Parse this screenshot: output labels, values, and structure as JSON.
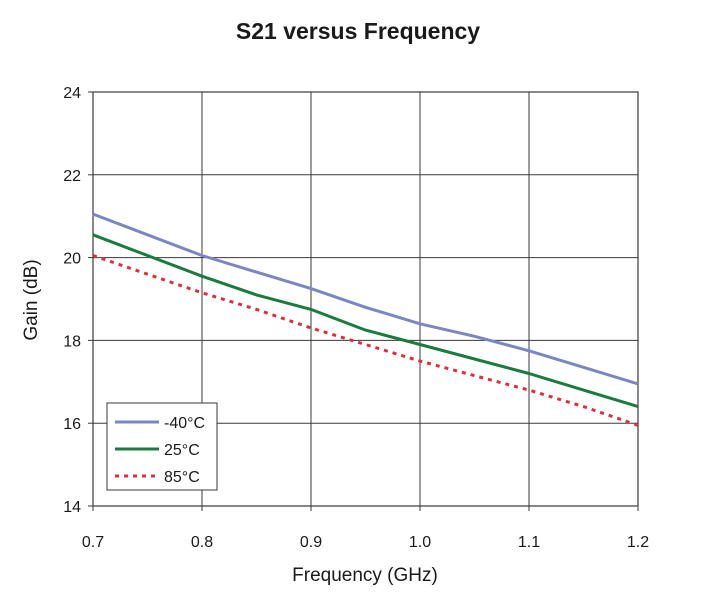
{
  "chart_data": {
    "type": "line",
    "title": "S21 versus Frequency",
    "xlabel": "Frequency (GHz)",
    "ylabel": "Gain (dB)",
    "xlim": [
      0.7,
      1.2
    ],
    "ylim": [
      14,
      24
    ],
    "xticks": [
      "0.7",
      "0.8",
      "0.9",
      "1.0",
      "1.1",
      "1.2"
    ],
    "yticks": [
      "14",
      "16",
      "18",
      "20",
      "22",
      "24"
    ],
    "grid": true,
    "legend_position": "bottom-left",
    "series": [
      {
        "name": "-40°C",
        "color": "#7b86c2",
        "style": "solid",
        "x": [
          0.7,
          0.75,
          0.8,
          0.85,
          0.9,
          0.95,
          1.0,
          1.05,
          1.1,
          1.15,
          1.2
        ],
        "y": [
          21.05,
          20.55,
          20.05,
          19.65,
          19.25,
          18.8,
          18.4,
          18.1,
          17.75,
          17.35,
          16.95
        ]
      },
      {
        "name": "25°C",
        "color": "#1b7a3e",
        "style": "solid",
        "x": [
          0.7,
          0.75,
          0.8,
          0.85,
          0.9,
          0.95,
          1.0,
          1.05,
          1.1,
          1.15,
          1.2
        ],
        "y": [
          20.55,
          20.05,
          19.55,
          19.1,
          18.75,
          18.25,
          17.9,
          17.55,
          17.2,
          16.8,
          16.4
        ]
      },
      {
        "name": "85°C",
        "color": "#d9303d",
        "style": "dotted",
        "x": [
          0.7,
          0.75,
          0.8,
          0.85,
          0.9,
          0.95,
          1.0,
          1.05,
          1.1,
          1.15,
          1.2
        ],
        "y": [
          20.05,
          19.6,
          19.15,
          18.75,
          18.3,
          17.9,
          17.5,
          17.15,
          16.8,
          16.4,
          15.95
        ]
      }
    ]
  }
}
